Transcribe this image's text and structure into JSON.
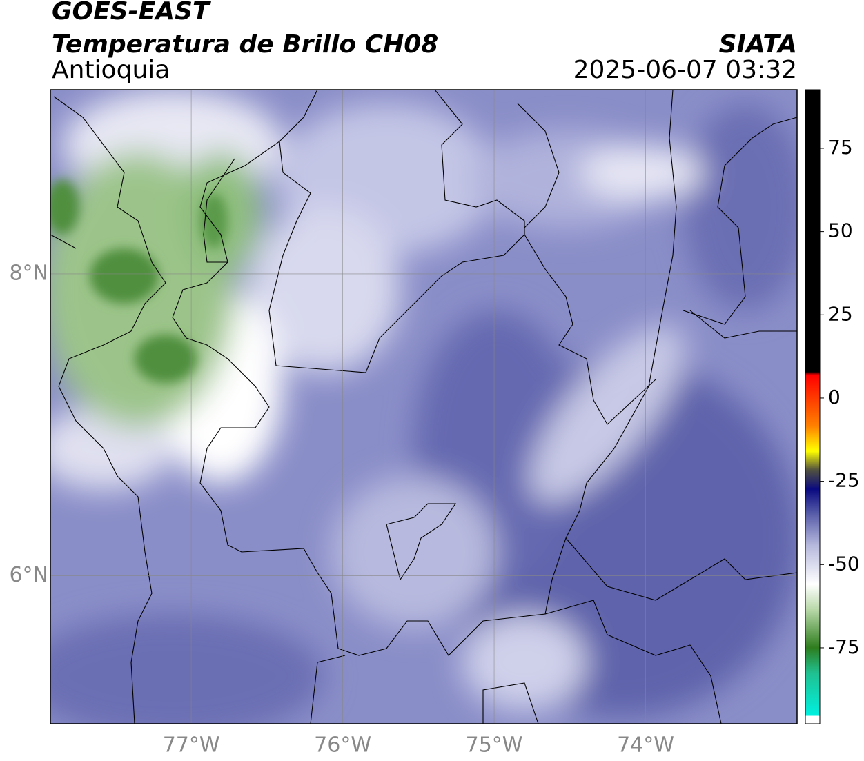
{
  "header": {
    "title": "GOES-EAST",
    "subtitle": "Temperatura de Brillo CH08",
    "region": "Antioquia",
    "source": "SIATA",
    "datetime": "2025-06-07 03:32"
  },
  "map": {
    "xlim": [
      -77.93,
      -73.0
    ],
    "ylim": [
      5.02,
      9.22
    ],
    "xticks": [
      {
        "value": -77,
        "label": "77°W"
      },
      {
        "value": -76,
        "label": "76°W"
      },
      {
        "value": -75,
        "label": "75°W"
      },
      {
        "value": -74,
        "label": "74°W"
      }
    ],
    "yticks": [
      {
        "value": 6,
        "label": "6°N"
      },
      {
        "value": 8,
        "label": "8°N"
      }
    ],
    "grid": true
  },
  "colorbar": {
    "lim": [
      -97.8,
      92.6
    ],
    "ticks": [
      -75,
      -50,
      -25,
      0,
      25,
      50,
      75
    ]
  }
}
